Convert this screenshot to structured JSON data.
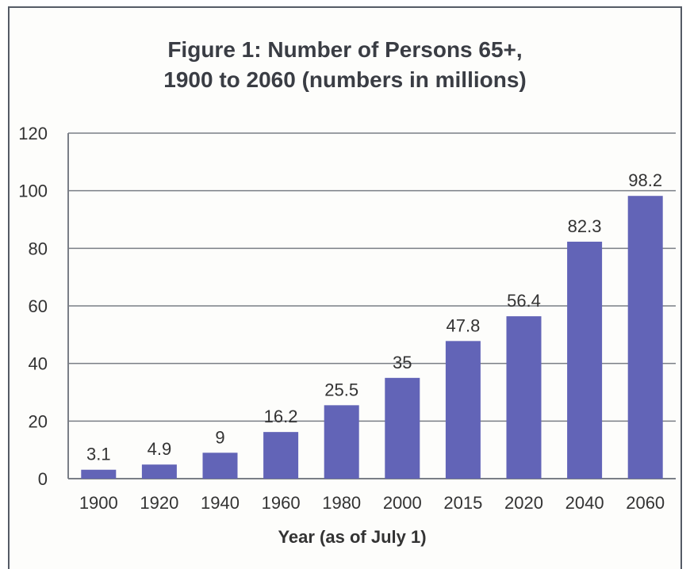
{
  "chart_data": {
    "type": "bar",
    "title_line1": "Figure 1:  Number of Persons 65+,",
    "title_line2": "1900 to 2060 (numbers in millions)",
    "xlabel": "Year (as of July 1)",
    "ylabel": "",
    "categories": [
      "1900",
      "1920",
      "1940",
      "1960",
      "1980",
      "2000",
      "2015",
      "2020",
      "2040",
      "2060"
    ],
    "values": [
      3.1,
      4.9,
      9,
      16.2,
      25.5,
      35,
      47.8,
      56.4,
      82.3,
      98.2
    ],
    "data_labels": [
      "3.1",
      "4.9",
      "9",
      "16.2",
      "25.5",
      "35",
      "47.8",
      "56.4",
      "82.3",
      "98.2"
    ],
    "ylim": [
      0,
      120
    ],
    "yticks": [
      "0",
      "20",
      "40",
      "60",
      "80",
      "100",
      "120"
    ],
    "grid": true,
    "colors": {
      "bar": "#6264b7",
      "grid": "#7a7e86",
      "text": "#333333"
    }
  }
}
